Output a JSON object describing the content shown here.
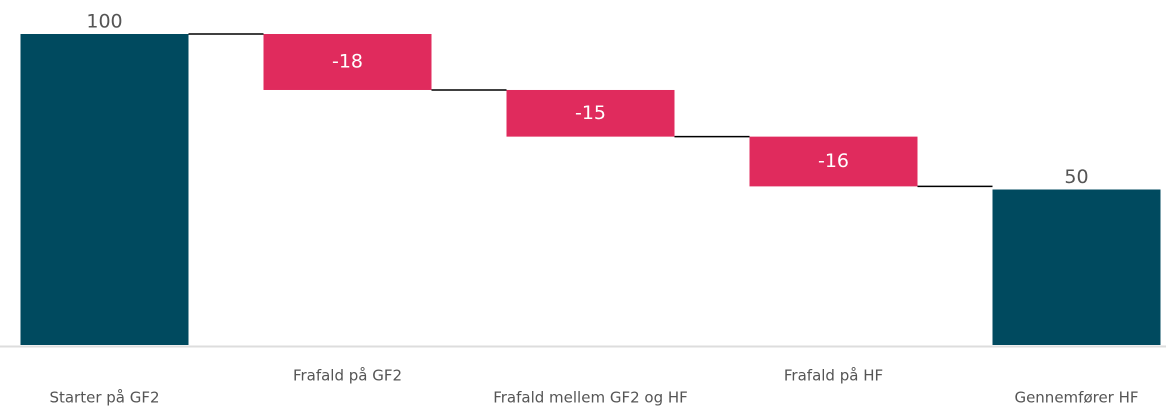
{
  "chart_data": {
    "type": "waterfall",
    "categories": [
      "Starter på GF2",
      "Frafald på GF2",
      "Frafald mellem GF2 og HF",
      "Frafald på HF",
      "Gennemfører HF"
    ],
    "values": [
      100,
      -18,
      -15,
      -16,
      50
    ],
    "measure": [
      "absolute",
      "relative",
      "relative",
      "relative",
      "total"
    ],
    "total_color": "#004a5f",
    "decrease_color": "#e02b5d",
    "ylim": [
      0,
      100
    ]
  }
}
